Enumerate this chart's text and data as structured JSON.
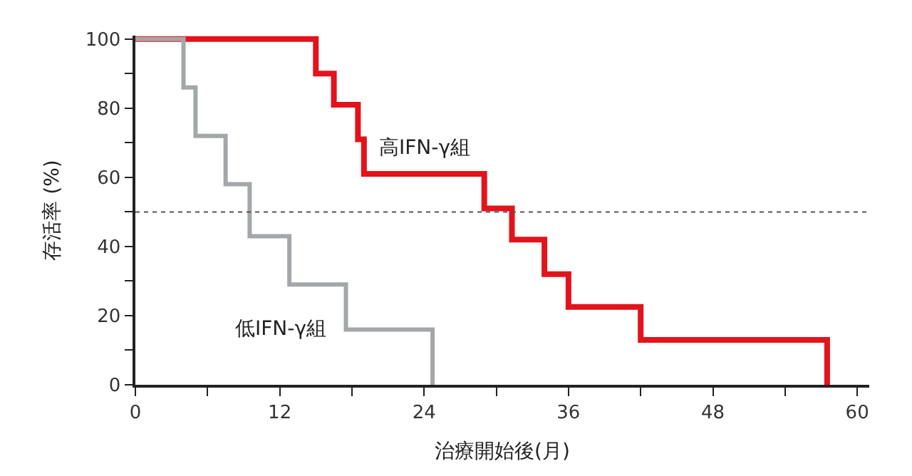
{
  "chart_data": {
    "type": "step",
    "xlabel": "治療開始後(月)",
    "ylabel": "存活率 (%)",
    "series": [
      {
        "name": "高IFN-γ組",
        "color": "#e3131b",
        "x": [
          0,
          15,
          16.5,
          18.5,
          19,
          29,
          31.3,
          34,
          36,
          42,
          57.5
        ],
        "values": [
          100,
          90,
          81,
          71,
          61,
          51,
          42,
          32,
          22.5,
          13,
          0
        ]
      },
      {
        "name": "低IFN-γ組",
        "color": "#a3a7a9",
        "x": [
          0,
          4,
          5,
          7.5,
          9.5,
          12.8,
          17.5,
          24.7
        ],
        "values": [
          100,
          86,
          72,
          58,
          43,
          29,
          16,
          0
        ]
      }
    ],
    "xlim": [
      0,
      61
    ],
    "ylim": [
      0,
      101
    ],
    "xticks": [
      0,
      {
        "value": 6,
        "label": null
      },
      12,
      {
        "value": 18,
        "label": null
      },
      24,
      {
        "value": 30,
        "label": null
      },
      36,
      {
        "value": 42,
        "label": null
      },
      48,
      {
        "value": 54,
        "label": null
      },
      60
    ],
    "yticks": [
      0,
      {
        "value": 10,
        "label": null
      },
      20,
      {
        "value": 30,
        "label": null
      },
      40,
      {
        "value": 50,
        "label": null
      },
      60,
      {
        "value": 70,
        "label": null
      },
      80,
      {
        "value": 90,
        "label": null
      },
      100
    ],
    "ref_lines": [
      {
        "axis": "y",
        "value": 50,
        "label": null,
        "color": "#555555",
        "line_style": "dotted"
      }
    ],
    "legend": false,
    "marker": "none"
  }
}
